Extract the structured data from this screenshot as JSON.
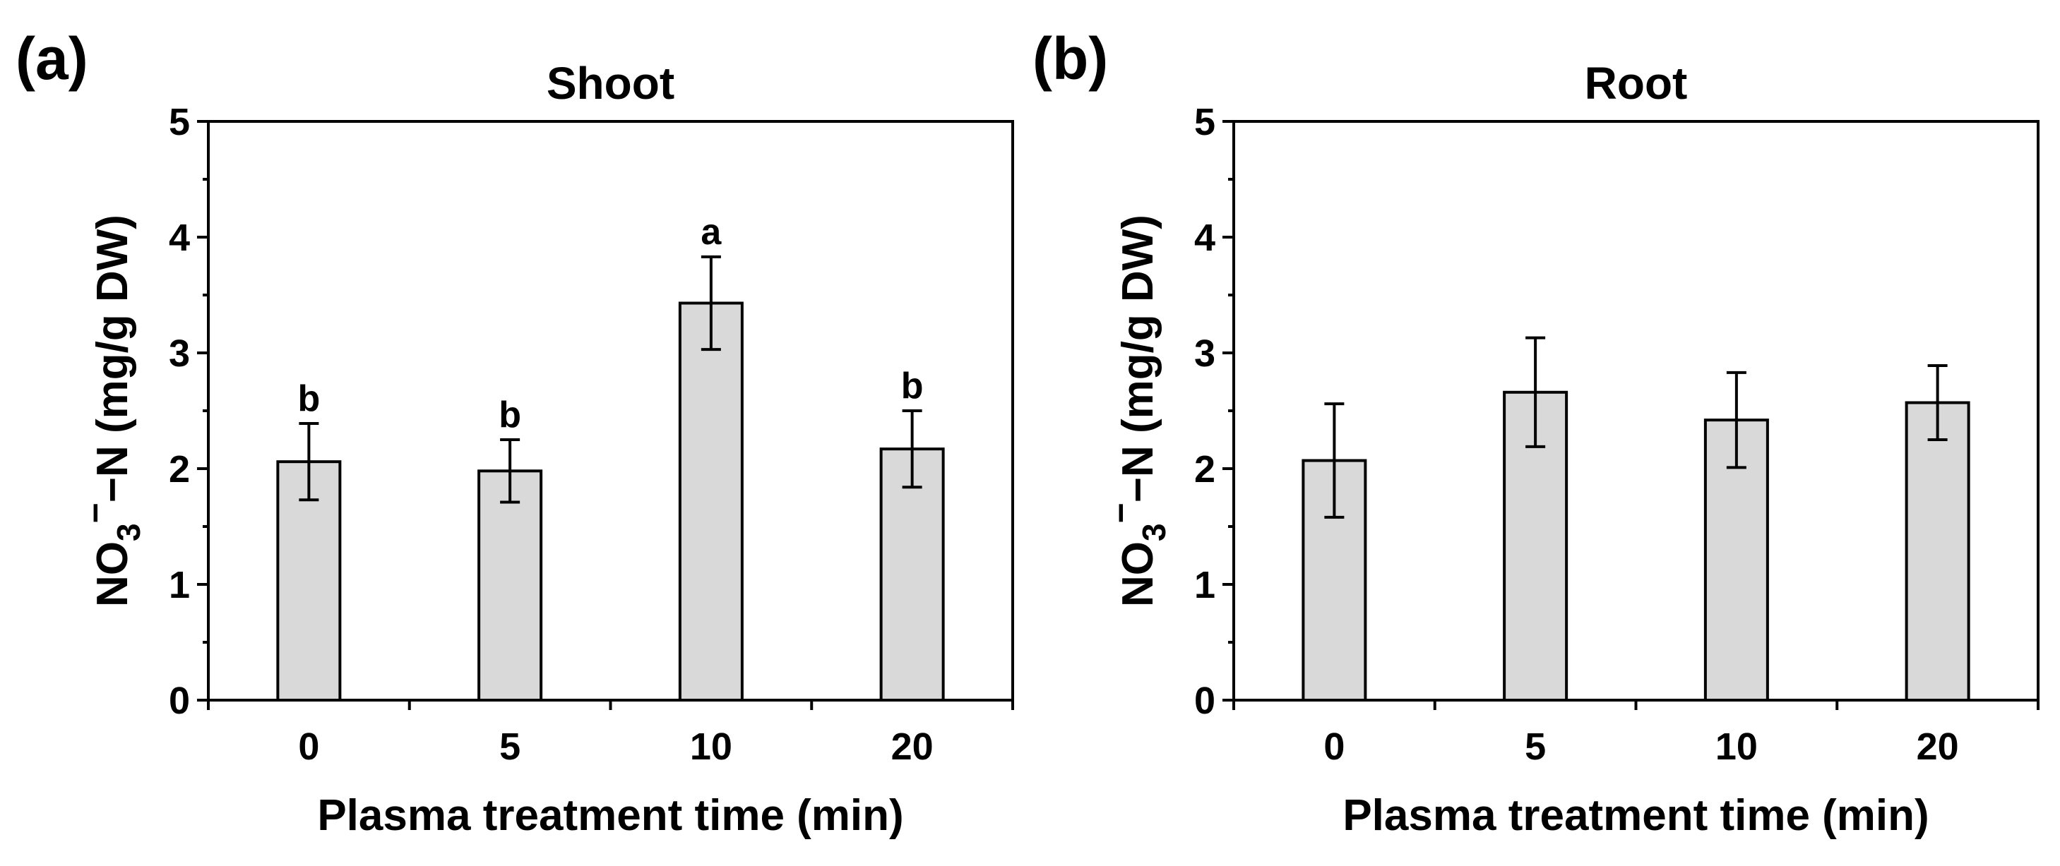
{
  "figure": {
    "bar_fill": "#d9d9d9",
    "bar_stroke": "#000000"
  },
  "chart_data": [
    {
      "panel_label": "(a)",
      "type": "bar",
      "title": "Shoot",
      "categories": [
        "0",
        "5",
        "10",
        "20"
      ],
      "values": [
        2.06,
        1.98,
        3.43,
        2.17
      ],
      "errors": [
        0.33,
        0.27,
        0.4,
        0.33
      ],
      "significance": [
        "b",
        "b",
        "a",
        "b"
      ],
      "xlabel": "Plasma treatment time (min)",
      "ylabel": {
        "main": "NO",
        "sub": "3",
        "sup": "−",
        "rest": "−N (mg/g DW)"
      },
      "ylim": [
        0,
        5
      ],
      "yticks": [
        "0",
        "1",
        "2",
        "3",
        "4",
        "5"
      ],
      "grid": false
    },
    {
      "panel_label": "(b)",
      "type": "bar",
      "title": "Root",
      "categories": [
        "0",
        "5",
        "10",
        "20"
      ],
      "values": [
        2.07,
        2.66,
        2.42,
        2.57
      ],
      "errors": [
        0.49,
        0.47,
        0.41,
        0.32
      ],
      "significance": [],
      "xlabel": "Plasma treatment time (min)",
      "ylabel": {
        "main": "NO",
        "sub": "3",
        "sup": "−",
        "rest": "−N (mg/g DW)"
      },
      "ylim": [
        0,
        5
      ],
      "yticks": [
        "0",
        "1",
        "2",
        "3",
        "4",
        "5"
      ],
      "grid": false
    }
  ]
}
